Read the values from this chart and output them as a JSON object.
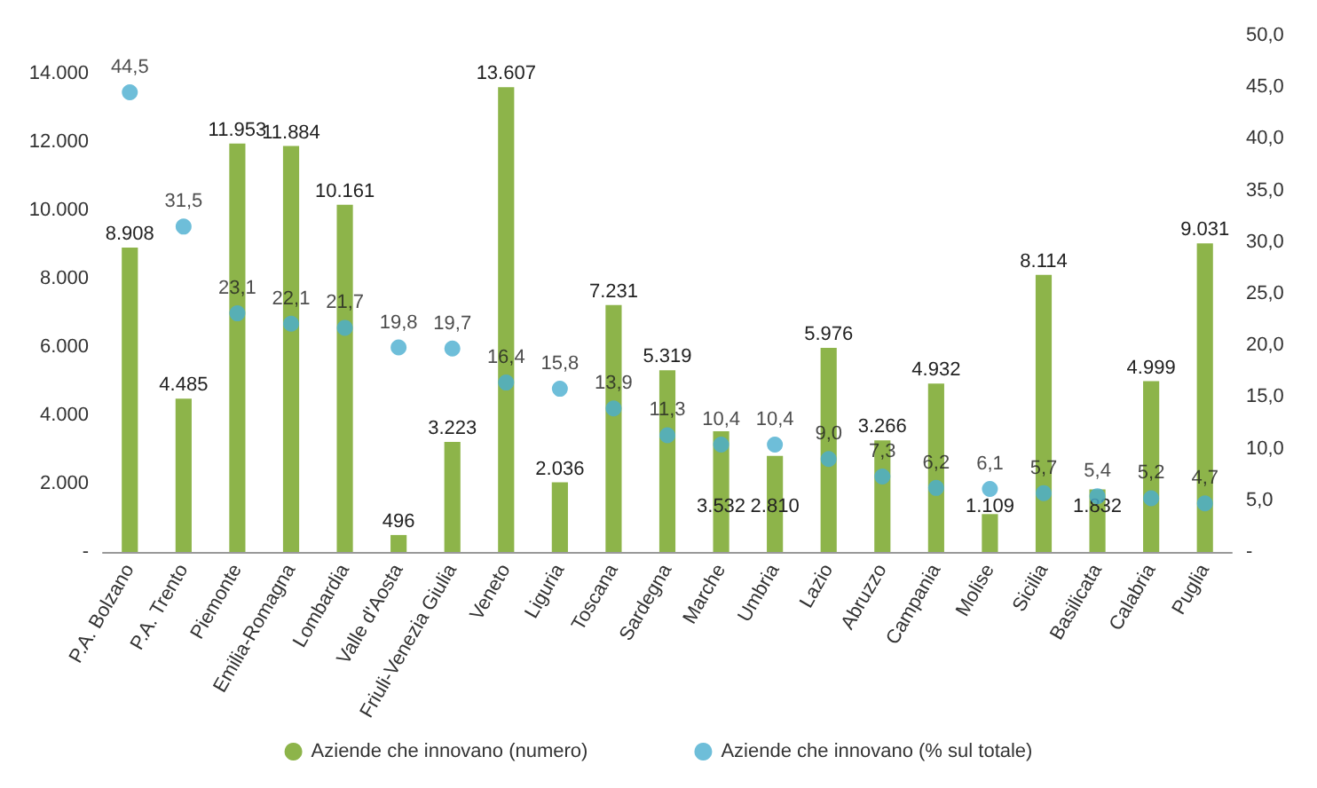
{
  "chart_data": {
    "type": "bar",
    "categories": [
      "P.A. Bolzano",
      "P.A. Trento",
      "Piemonte",
      "Emilia-Romagna",
      "Lombardia",
      "Valle d'Aosta",
      "Friuli-Venezia Giulia",
      "Veneto",
      "Liguria",
      "Toscana",
      "Sardegna",
      "Marche",
      "Umbria",
      "Lazio",
      "Abruzzo",
      "Campania",
      "Molise",
      "Sicilia",
      "Basilicata",
      "Calabria",
      "Puglia"
    ],
    "series": [
      {
        "name": "Aziende che innovano (numero)",
        "color": "#8db44a",
        "values": [
          8908,
          4485,
          11953,
          11884,
          10161,
          496,
          3223,
          13607,
          2036,
          7231,
          5319,
          3532,
          2810,
          5976,
          3266,
          4932,
          1109,
          8114,
          1832,
          4999,
          9031
        ],
        "value_labels": [
          "8.908",
          "4.485",
          "11.953",
          "11.884",
          "10.161",
          "496",
          "3.223",
          "13.607",
          "2.036",
          "7.231",
          "5.319",
          "3.532",
          "2.810",
          "5.976",
          "3.266",
          "4.932",
          "1.109",
          "8.114",
          "1.832",
          "4.999",
          "9.031"
        ]
      },
      {
        "name": "Aziende che innovano (% sul totale)",
        "type": "scatter",
        "axis": "y2",
        "color": "#4aaed0",
        "values": [
          44.5,
          31.5,
          23.1,
          22.1,
          21.7,
          19.8,
          19.7,
          16.4,
          15.8,
          13.9,
          11.3,
          10.4,
          10.4,
          9.0,
          7.3,
          6.2,
          6.1,
          5.7,
          5.4,
          5.2,
          4.7
        ],
        "value_labels": [
          "44,5",
          "31,5",
          "23,1",
          "22,1",
          "21,7",
          "19,8",
          "19,7",
          "16,4",
          "15,8",
          "13,9",
          "11,3",
          "10,4",
          "10,4",
          "9,0",
          "7,3",
          "6,2",
          "6,1",
          "5,7",
          "5,4",
          "5,2",
          "4,7"
        ]
      }
    ],
    "ylim": [
      0,
      14000
    ],
    "yticks": [
      {
        "value": 0,
        "label": "-"
      },
      {
        "value": 2000,
        "label": "2.000"
      },
      {
        "value": 4000,
        "label": "4.000"
      },
      {
        "value": 6000,
        "label": "6.000"
      },
      {
        "value": 8000,
        "label": "8.000"
      },
      {
        "value": 10000,
        "label": "10.000"
      },
      {
        "value": 12000,
        "label": "12.000"
      },
      {
        "value": 14000,
        "label": "14.000"
      }
    ],
    "y2lim": [
      0,
      50
    ],
    "y2ticks": [
      {
        "value": 0,
        "label": "-"
      },
      {
        "value": 5,
        "label": "5,0"
      },
      {
        "value": 10,
        "label": "10,0"
      },
      {
        "value": 15,
        "label": "15,0"
      },
      {
        "value": 20,
        "label": "20,0"
      },
      {
        "value": 25,
        "label": "25,0"
      },
      {
        "value": 30,
        "label": "30,0"
      },
      {
        "value": 35,
        "label": "35,0"
      },
      {
        "value": 40,
        "label": "40,0"
      },
      {
        "value": 45,
        "label": "45,0"
      },
      {
        "value": 50,
        "label": "50,0"
      }
    ],
    "grid": false,
    "legend": "bottom",
    "marker": "circle"
  }
}
